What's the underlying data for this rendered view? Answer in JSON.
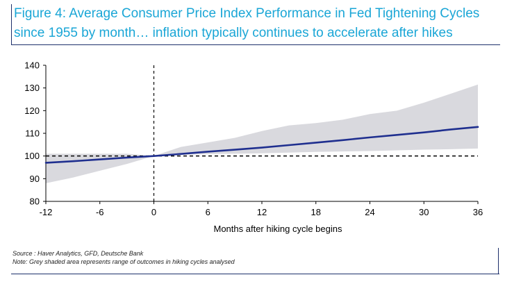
{
  "figure": {
    "title_line1": "Figure 4: Average Consumer Price Index Performance in Fed Tightening Cycles",
    "title_line2": "since 1955 by month… inflation typically continues to accelerate after hikes",
    "source": "Source : Haver Analytics, GFD, Deutsche Bank",
    "note": "Note: Grey shaded area represents range of outcomes in hiking cycles analysed"
  },
  "colors": {
    "title": "#1aa6d6",
    "rule": "#1c2f6b",
    "line": "#1f2f8f",
    "band": "#d9d9de",
    "reference": "#000000"
  },
  "chart_data": {
    "type": "line",
    "xlabel": "Months after hiking cycle begins",
    "ylabel": "",
    "xlim": [
      -12,
      36
    ],
    "ylim": [
      80,
      140
    ],
    "xticks": [
      -12,
      -6,
      0,
      6,
      12,
      18,
      24,
      30,
      36
    ],
    "yticks": [
      80,
      90,
      100,
      110,
      120,
      130,
      140
    ],
    "grid": false,
    "legend": "none",
    "reference_lines": [
      {
        "orientation": "horizontal",
        "value": 100,
        "style": "dashed"
      },
      {
        "orientation": "vertical",
        "value": 0,
        "style": "dashed"
      }
    ],
    "series": [
      {
        "type": "line",
        "x": [
          -12,
          -9,
          -6,
          -3,
          0,
          3,
          6,
          9,
          12,
          15,
          18,
          21,
          24,
          27,
          30,
          33,
          36
        ],
        "values": [
          97.0,
          97.7,
          98.5,
          99.3,
          100.0,
          100.9,
          101.9,
          102.8,
          103.7,
          104.8,
          105.9,
          107.0,
          108.2,
          109.3,
          110.4,
          111.7,
          112.8
        ]
      },
      {
        "type": "range",
        "x": [
          -12,
          -9,
          -6,
          -3,
          0,
          3,
          6,
          9,
          12,
          15,
          18,
          21,
          24,
          27,
          30,
          33,
          36
        ],
        "upper": [
          101.0,
          101.0,
          101.0,
          101.0,
          100.0,
          104.0,
          106.0,
          108.0,
          111.0,
          113.5,
          114.5,
          116.0,
          118.5,
          120.0,
          123.5,
          127.5,
          131.5
        ],
        "lower": [
          88.0,
          90.5,
          93.5,
          96.5,
          100.0,
          100.5,
          100.8,
          101.0,
          101.2,
          101.5,
          101.8,
          102.0,
          102.2,
          102.5,
          102.8,
          103.0,
          103.3
        ]
      }
    ]
  }
}
